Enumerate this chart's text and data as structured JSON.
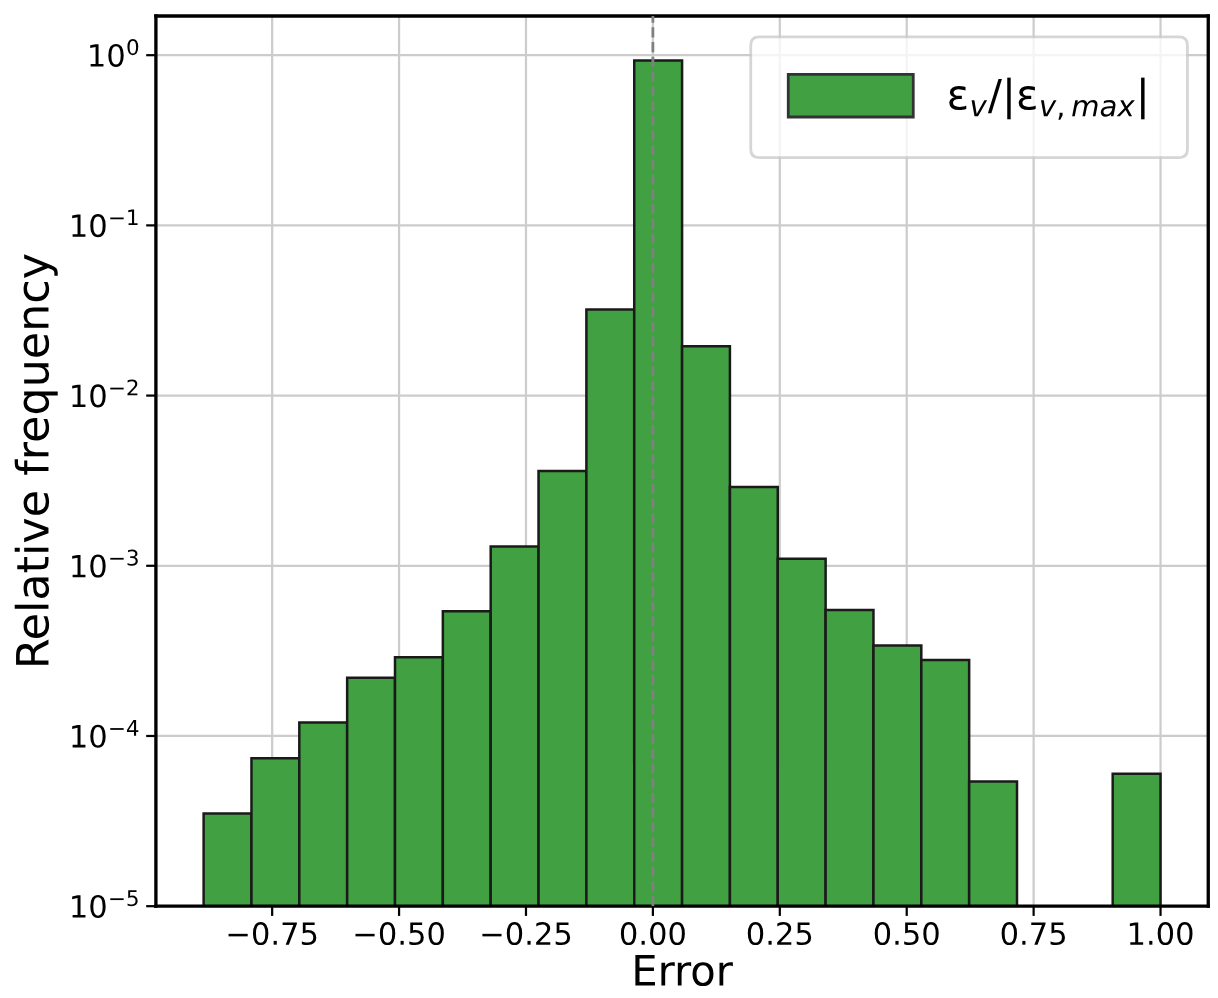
{
  "chart_data": {
    "type": "histogram",
    "xlabel": "Error",
    "ylabel": "Relative frequency",
    "bins": [
      -0.885,
      -0.79075,
      -0.6965,
      -0.60225,
      -0.508,
      -0.41375,
      -0.3195,
      -0.22525,
      -0.131,
      -0.03675,
      0.0575,
      0.15175,
      0.246,
      0.34025,
      0.4345,
      0.52875,
      0.623,
      0.71725,
      0.8115,
      0.90575,
      1.0
    ],
    "series": [
      {
        "name": "ε$_{v}$/|ε$_{v,max}$|",
        "color": "#41a041",
        "values": [
          3.5e-05,
          7.4e-05,
          0.00012,
          0.00022,
          0.00029,
          0.00054,
          0.0013,
          0.0036,
          0.032,
          0.93,
          0.0195,
          0.0029,
          0.0011,
          0.00055,
          0.00034,
          0.00028,
          5.4e-05,
          null,
          null,
          6e-05
        ]
      }
    ],
    "log": "y",
    "grid": true,
    "legend": "top right",
    "xlim": [
      -0.979,
      1.094
    ],
    "xticks": [
      {
        "value": -0.75,
        "label": "−0.75"
      },
      {
        "value": -0.5,
        "label": "−0.50"
      },
      {
        "value": -0.25,
        "label": "−0.25"
      },
      {
        "value": 0,
        "label": "0.00"
      },
      {
        "value": 0.25,
        "label": "0.25"
      },
      {
        "value": 0.5,
        "label": "0.50"
      },
      {
        "value": 0.75,
        "label": "0.75"
      },
      {
        "value": 1.0,
        "label": "1.00"
      }
    ],
    "ylim": [
      1e-05,
      1.7
    ],
    "yticks": [
      {
        "value": 1e-05,
        "label": "10$^{−5}$"
      },
      {
        "value": 0.0001,
        "label": "10$^{−4}$"
      },
      {
        "value": 0.001,
        "label": "10$^{−3}$"
      },
      {
        "value": 0.01,
        "label": "10$^{−2}$"
      },
      {
        "value": 0.1,
        "label": "10$^{−1}$"
      },
      {
        "value": 1,
        "label": "10$^{0}$"
      }
    ],
    "ref_lines": [
      {
        "axis": "x",
        "value": 0,
        "color": "#808080",
        "line_style": "dashed"
      }
    ]
  }
}
